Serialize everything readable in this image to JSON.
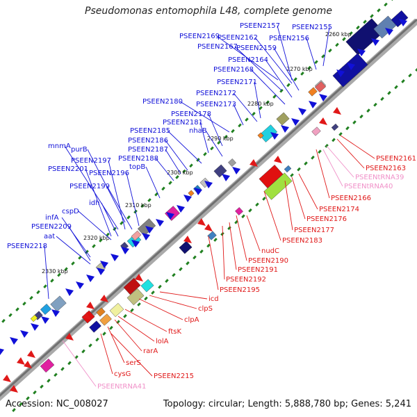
{
  "title": "Pseudomonas entomophila L48, complete genome",
  "footer": {
    "accession": "Accession: NC_008027",
    "stats": "Topology: circular; Length: 5,888,780 bp; Genes: 5,241"
  },
  "colors": {
    "forward_strand": "#1010d8",
    "reverse_strand": "#e01818",
    "trna": "#f090c8",
    "axis": "#808080",
    "tick_dot": "#208020"
  },
  "ticks": [
    "2260 kbp",
    "2270 kbp",
    "2280 kbp",
    "2290 kbp",
    "2300 kbp",
    "2310 kbp",
    "2320 kbp",
    "2330 kbp"
  ],
  "forward_labels": [
    "PSEEN2157",
    "PSEEN2155",
    "PSEEN2169",
    "PSEEN2162",
    "PSEEN2156",
    "PSEEN2167",
    "PSEEN2159",
    "PSEEN2164",
    "PSEEN2168",
    "PSEEN2171",
    "PSEEN2172",
    "PSEEN2180",
    "PSEEN2173",
    "PSEEN2178",
    "PSEEN2181",
    "PSEEN2185",
    "nhaB",
    "PSEEN2186",
    "PSEEN2187",
    "mnmA",
    "purB",
    "PSEEN2188",
    "PSEEN2197",
    "topB",
    "PSEEN2201",
    "PSEEN2196",
    "PSEEN2199",
    "idh",
    "cspD",
    "infA",
    "PSEEN2209",
    "aat",
    "PSEEN2218"
  ],
  "reverse_labels": [
    "PSEEN2161",
    "PSEEN2163",
    "PSEENtRNA39",
    "PSEENtRNA40",
    "PSEEN2166",
    "PSEEN2174",
    "PSEEN2176",
    "PSEEN2177",
    "PSEEN2183",
    "nudC",
    "PSEEN2190",
    "PSEEN2191",
    "PSEEN2192",
    "PSEEN2195",
    "icd",
    "clpS",
    "clpA",
    "ftsK",
    "lolA",
    "rarA",
    "serS",
    "PSEEN2215",
    "cysG",
    "PSEENtRNA41"
  ]
}
